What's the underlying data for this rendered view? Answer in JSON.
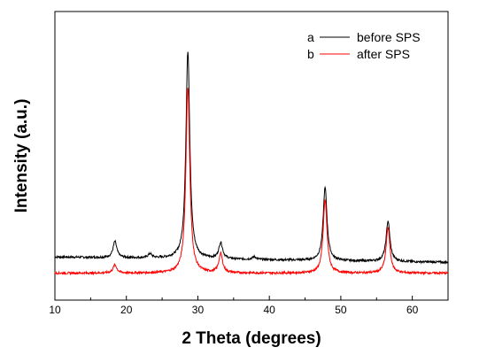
{
  "chart_data": {
    "type": "line",
    "title": "",
    "xlabel": "2 Theta (degrees)",
    "ylabel": "Intensity (a.u.)",
    "xlim": [
      10,
      65
    ],
    "ylim": [
      0,
      1.07
    ],
    "x_ticks": [
      10,
      20,
      30,
      40,
      50,
      60
    ],
    "y_ticks": [],
    "grid": false,
    "legend_position": "top-right",
    "series": [
      {
        "key": "a",
        "name": "before SPS",
        "color": "#000000",
        "baseline": 0.16,
        "baseline_slope": -0.02,
        "peaks": [
          {
            "x": 18.4,
            "height": 0.06
          },
          {
            "x": 23.3,
            "height": 0.015
          },
          {
            "x": 28.6,
            "height": 0.77
          },
          {
            "x": 33.2,
            "height": 0.06
          },
          {
            "x": 37.9,
            "height": 0.01
          },
          {
            "x": 47.8,
            "height": 0.27
          },
          {
            "x": 56.6,
            "height": 0.15
          }
        ]
      },
      {
        "key": "b",
        "name": "after SPS",
        "color": "#ff0000",
        "baseline": 0.1,
        "baseline_slope": 0.0,
        "peaks": [
          {
            "x": 18.4,
            "height": 0.03
          },
          {
            "x": 28.6,
            "height": 0.69
          },
          {
            "x": 33.2,
            "height": 0.07
          },
          {
            "x": 47.8,
            "height": 0.27
          },
          {
            "x": 56.6,
            "height": 0.17
          }
        ]
      }
    ]
  },
  "legend": [
    {
      "key": "a",
      "label": "before SPS"
    },
    {
      "key": "b",
      "label": "after SPS"
    }
  ]
}
